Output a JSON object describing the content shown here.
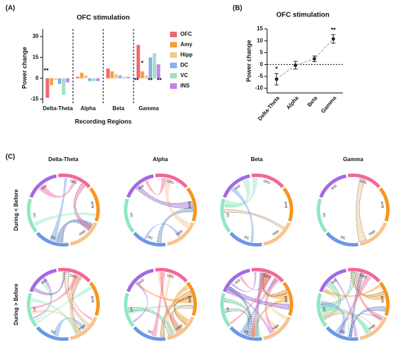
{
  "chart_data": [
    {
      "type": "bar",
      "panel": "(A)",
      "title": "OFC stimulation",
      "y_label": "Power change",
      "x_label": "Recording Regions",
      "categories": [
        "Delta-Theta",
        "Alpha",
        "Beta",
        "Gamma"
      ],
      "series": [
        {
          "name": "OFC",
          "color": "#f0646e",
          "values": [
            -14,
            1,
            7,
            24
          ]
        },
        {
          "name": "Amy",
          "color": "#f5a040",
          "values": [
            -5,
            4,
            5,
            5
          ]
        },
        {
          "name": "Hipp",
          "color": "#f7c48f",
          "values": [
            -1,
            2,
            3,
            2
          ]
        },
        {
          "name": "DC",
          "color": "#8ab0e8",
          "values": [
            -4,
            -2,
            2,
            15
          ]
        },
        {
          "name": "VC",
          "color": "#a0e0c8",
          "values": [
            -12,
            -2,
            1,
            18
          ]
        },
        {
          "name": "INS",
          "color": "#c880e8",
          "values": [
            -3,
            -2,
            1,
            10
          ]
        }
      ],
      "ylim": [
        -18,
        33
      ],
      "yticks": [
        -15,
        0,
        15,
        30
      ],
      "annotations": [
        "**",
        "*",
        "**",
        "**",
        "**"
      ]
    },
    {
      "type": "errorline",
      "panel": "(B)",
      "title": "OFC stimulation",
      "y_label": "Power change",
      "categories": [
        "Delta-Theta",
        "Alpha",
        "Beta",
        "Gamma"
      ],
      "values": [
        -6.2,
        -0.3,
        2.4,
        10.8
      ],
      "errors": [
        2.4,
        1.6,
        1.2,
        1.8
      ],
      "color": "#222",
      "ylim": [
        -12,
        15
      ],
      "yticks": [
        -10,
        -5,
        0,
        5,
        10,
        15
      ],
      "annotations": [
        "*",
        "**"
      ]
    }
  ],
  "chords": {
    "panel": "(C)",
    "columns": [
      "Delta-Theta",
      "Alpha",
      "Beta",
      "Gamma"
    ],
    "rows": [
      "During < Before",
      "During > Before"
    ],
    "nodes": [
      "OFC",
      "Amy",
      "Hipp",
      "DC",
      "VC",
      "INS"
    ],
    "colors": [
      "#f2679a",
      "#f5961e",
      "#f8c38c",
      "#6b98e6",
      "#8fe8c0",
      "#a26ae6"
    ]
  }
}
